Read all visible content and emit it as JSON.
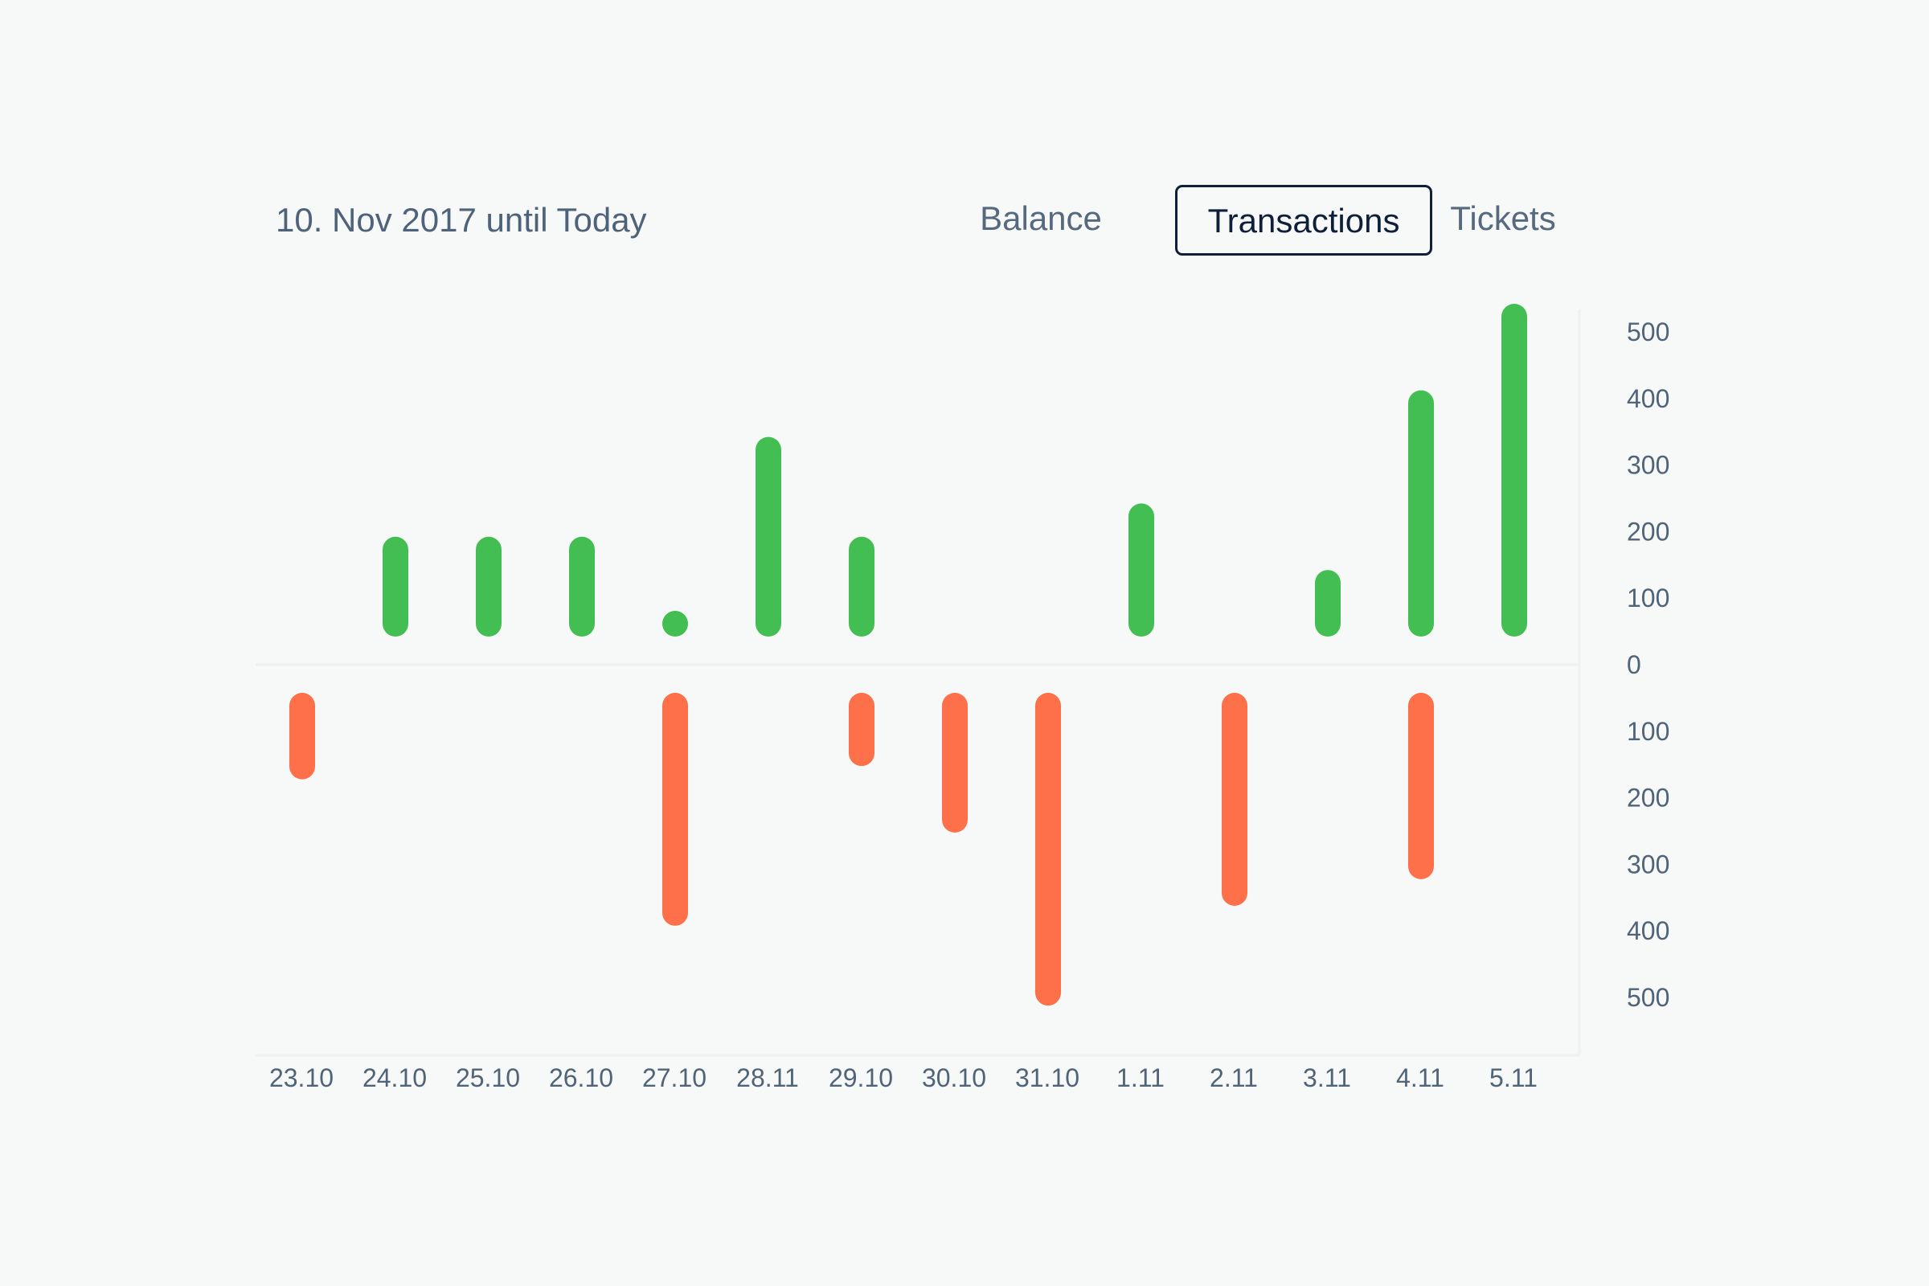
{
  "range_label": "10. Nov 2017 until Today",
  "tabs": [
    {
      "label": "Balance",
      "active": false
    },
    {
      "label": "Transactions",
      "active": true
    },
    {
      "label": "Tickets",
      "active": false
    }
  ],
  "colors": {
    "positive": "#42be52",
    "negative": "#fd7049",
    "axis_text": "#4f6379",
    "active_tab_border": "#0f1f3a",
    "background": "#f7f8f8"
  },
  "chart_data": {
    "type": "bar",
    "categories": [
      "23.10",
      "24.10",
      "25.10",
      "26.10",
      "27.10",
      "28.11",
      "29.10",
      "30.10",
      "31.10",
      "1.11",
      "2.11",
      "3.11",
      "4.11",
      "5.11"
    ],
    "series": [
      {
        "values": [
          0,
          150,
          150,
          150,
          20,
          300,
          150,
          0,
          0,
          200,
          0,
          100,
          370,
          500
        ]
      },
      {
        "values": [
          130,
          0,
          0,
          0,
          350,
          0,
          110,
          210,
          470,
          0,
          320,
          0,
          280,
          0
        ]
      }
    ],
    "yticks_positive": [
      "500",
      "400",
      "300",
      "200",
      "100",
      "0"
    ],
    "yticks_negative": [
      "100",
      "200",
      "300",
      "400",
      "500"
    ],
    "ylim": [
      -500,
      500
    ],
    "grid": false
  }
}
